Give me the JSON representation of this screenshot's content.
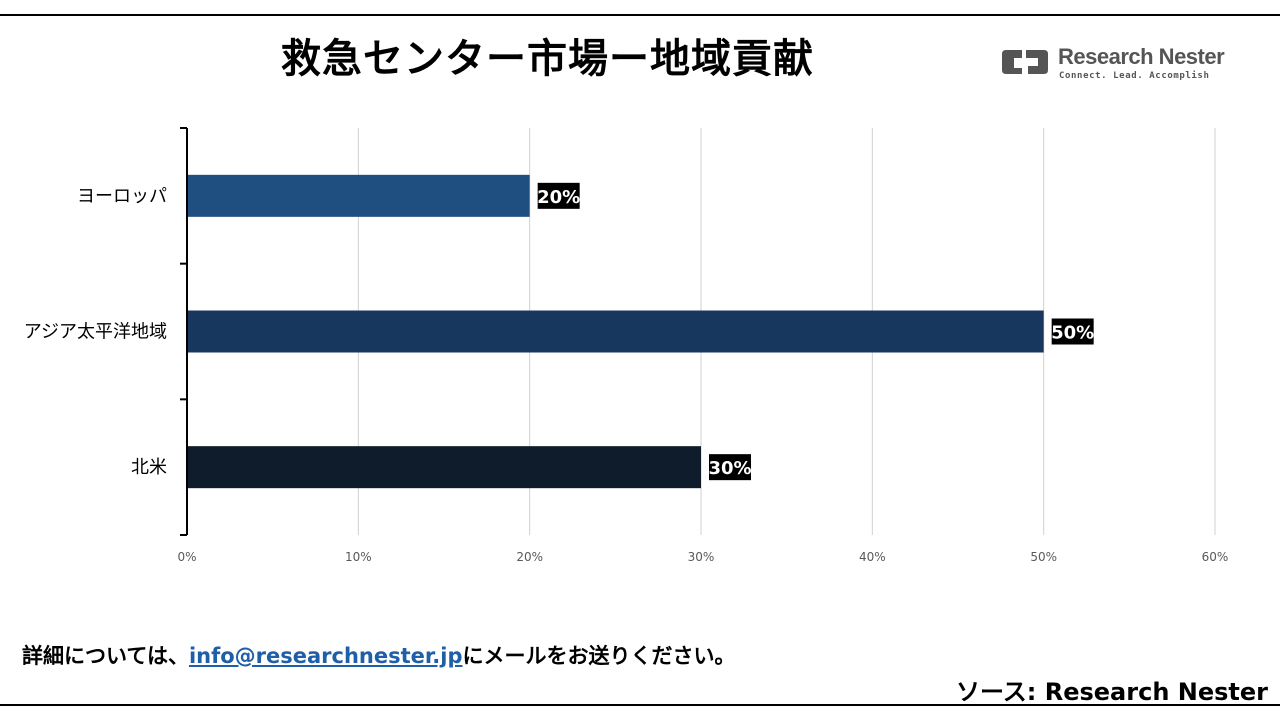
{
  "chart_data": {
    "type": "bar",
    "orientation": "horizontal",
    "title": "救急センター市場ー地域貢献",
    "categories": [
      "ヨーロッパ",
      "アジア太平洋地域",
      "北米"
    ],
    "values": [
      20,
      50,
      30
    ],
    "value_labels": [
      "20%",
      "50%",
      "30%"
    ],
    "bar_colors": [
      "#1f4e80",
      "#17375e",
      "#0e1c2c"
    ],
    "xlim": [
      0,
      60
    ],
    "xticks": [
      0,
      10,
      20,
      30,
      40,
      50,
      60
    ],
    "xtick_labels": [
      "0%",
      "10%",
      "20%",
      "30%",
      "40%",
      "50%",
      "60%"
    ],
    "grid": true,
    "legend": "none"
  },
  "brand": {
    "name": "Research Nester",
    "tagline": "Connect. Lead. Accomplish"
  },
  "footer": {
    "contact_prefix": "詳細については、",
    "contact_email": "info@researchnester.jp",
    "contact_suffix": "にメールをお送りください。",
    "source": "ソース: Research Nester"
  },
  "colors": {
    "link": "#1f5fa8",
    "label_bg": "#000000",
    "gridline": "#d0d0d0"
  }
}
